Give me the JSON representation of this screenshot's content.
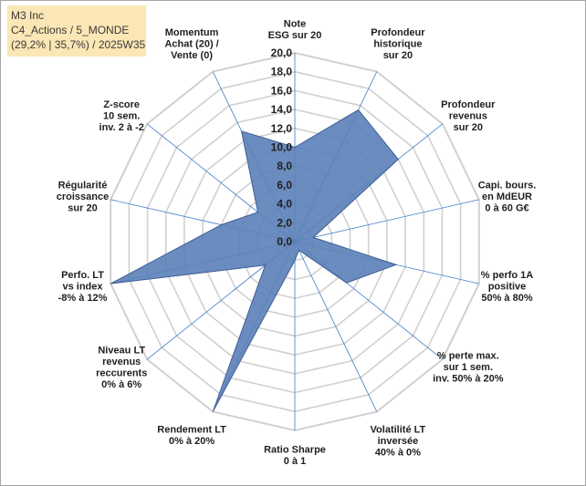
{
  "info": {
    "line1": "M3 Inc",
    "line2": "C4_Actions / 5_MONDE",
    "line3": "(29,2% | 35,7%) / 2025W35"
  },
  "chart_data": {
    "type": "radar",
    "title": "",
    "rmin": 0,
    "rmax": 20,
    "tick_labels": [
      "0,0",
      "2,0",
      "4,0",
      "6,0",
      "8,0",
      "10,0",
      "12,0",
      "14,0",
      "16,0",
      "18,0",
      "20,0"
    ],
    "axes": [
      [
        "Note",
        "ESG sur 20"
      ],
      [
        "Profondeur",
        "historique",
        "sur 20"
      ],
      [
        "Profondeur",
        "revenus",
        "sur 20"
      ],
      [
        "Capi. bours.",
        "en MdEUR",
        "0 à 60 G€"
      ],
      [
        "% perfo 1A",
        "positive",
        "50% à 80%"
      ],
      [
        "% perte max.",
        "sur 1 sem.",
        "inv. 50% à 20%"
      ],
      [
        "Volatilité LT",
        "inversée",
        "40% à 0%"
      ],
      [
        "Ratio Sharpe",
        "0 à 1"
      ],
      [
        "Rendement LT",
        "0% à 20%"
      ],
      [
        "Niveau LT",
        "revenus",
        "reccurents",
        "0% à 6%"
      ],
      [
        "Perfo. LT",
        "vs index",
        "-8% à 12%"
      ],
      [
        "Régularité",
        "croissance",
        "sur 20"
      ],
      [
        "Z-score",
        "10 sem.",
        "inv. 2 à -2"
      ],
      [
        "Momentum",
        "Achat (20) /",
        "Vente (0)"
      ]
    ],
    "values": [
      10,
      15.5,
      14,
      2,
      11,
      7,
      1,
      2,
      20,
      4,
      20,
      8,
      5,
      13
    ],
    "colors": {
      "fill": "#5b80b8",
      "stroke": "#3f5f95",
      "grid": "#d0d0d0",
      "spoke": "#3d7cc9"
    }
  }
}
